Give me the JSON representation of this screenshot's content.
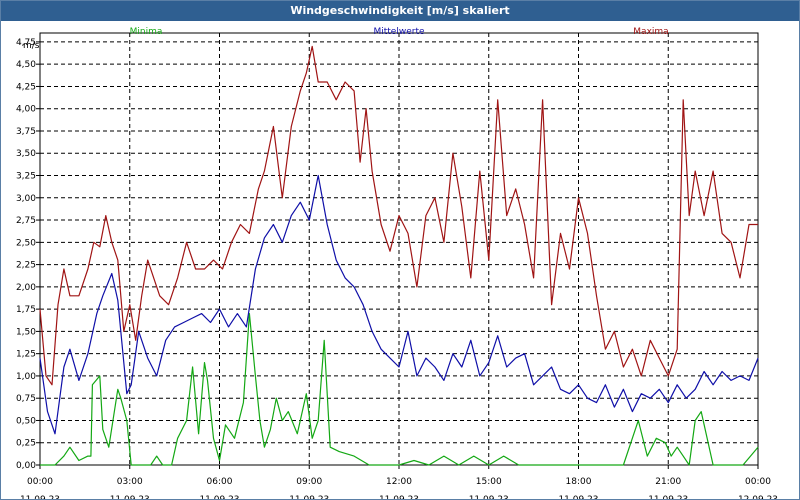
{
  "window": {
    "title": "Windgeschwindigkeit [m/s] skaliert"
  },
  "colors": {
    "min": "#14a814",
    "mean": "#0f0fa8",
    "max": "#a01414",
    "grid": "#000000",
    "frame": "#2f5f91"
  },
  "chart_data": {
    "type": "line",
    "title": "Windgeschwindigkeit [m/s] skaliert",
    "ylabel": "m/s",
    "xlabel": "",
    "ylim": [
      0,
      4.85
    ],
    "xlim": [
      0,
      24
    ],
    "grid": true,
    "legend_placement": "top",
    "y_ticks": [
      "0,00",
      "0,25",
      "0,50",
      "0,75",
      "1,00",
      "1,25",
      "1,50",
      "1,75",
      "2,00",
      "2,25",
      "2,50",
      "2,75",
      "3,00",
      "3,25",
      "3,50",
      "3,75",
      "4,00",
      "4,25",
      "4,50",
      "4,75"
    ],
    "x_ticks": [
      {
        "time": "00:00",
        "date": "11.09.23"
      },
      {
        "time": "03:00",
        "date": "11.09.23"
      },
      {
        "time": "06:00",
        "date": "11.09.23"
      },
      {
        "time": "09:00",
        "date": "11.09.23"
      },
      {
        "time": "12:00",
        "date": "11.09.23"
      },
      {
        "time": "15:00",
        "date": "11.09.23"
      },
      {
        "time": "18:00",
        "date": "11.09.23"
      },
      {
        "time": "21:00",
        "date": "11.09.23"
      },
      {
        "time": "00:00",
        "date": "12.09.23"
      }
    ],
    "series": [
      {
        "name": "Minima",
        "x": [
          0,
          0.5,
          0.8,
          1.0,
          1.3,
          1.6,
          1.7,
          1.75,
          2.0,
          2.1,
          2.3,
          2.6,
          2.7,
          2.9,
          3.05,
          3.2,
          3.5,
          3.7,
          3.9,
          4.1,
          4.4,
          4.6,
          4.9,
          5.1,
          5.3,
          5.5,
          5.6,
          5.8,
          6.0,
          6.2,
          6.5,
          6.8,
          7.0,
          7.2,
          7.35,
          7.5,
          7.7,
          7.9,
          8.1,
          8.3,
          8.6,
          8.9,
          9.1,
          9.3,
          9.5,
          9.7,
          10,
          10.5,
          11,
          11.5,
          12,
          12.5,
          13,
          13.5,
          14,
          14.5,
          15,
          15.5,
          16,
          16.5,
          17,
          17.5,
          18,
          18.5,
          19,
          19.5,
          20,
          20.3,
          20.6,
          20.9,
          21.1,
          21.3,
          21.5,
          21.7,
          21.9,
          22.1,
          22.5,
          23,
          23.5,
          24
        ],
        "values": [
          0,
          0,
          0.1,
          0.2,
          0.05,
          0.1,
          0.1,
          0.9,
          1.0,
          0.4,
          0.2,
          0.85,
          0.75,
          0.5,
          0,
          0,
          0,
          0,
          0.1,
          0,
          0,
          0.3,
          0.5,
          1.1,
          0.35,
          1.15,
          0.95,
          0.3,
          0.05,
          0.45,
          0.3,
          0.7,
          1.7,
          1.0,
          0.5,
          0.2,
          0.4,
          0.75,
          0.5,
          0.6,
          0.35,
          0.8,
          0.3,
          0.5,
          1.4,
          0.2,
          0.15,
          0.1,
          0,
          0,
          0,
          0.05,
          0,
          0.1,
          0,
          0.1,
          0,
          0.1,
          0,
          0,
          0,
          0,
          0,
          0,
          0,
          0,
          0.5,
          0.1,
          0.3,
          0.25,
          0.1,
          0.2,
          0.1,
          0,
          0.5,
          0.6,
          0,
          0,
          0,
          0.2
        ]
      },
      {
        "name": "Mittelwerte",
        "x": [
          0,
          0.25,
          0.5,
          0.8,
          1.0,
          1.3,
          1.6,
          1.9,
          2.1,
          2.4,
          2.6,
          2.9,
          3.05,
          3.3,
          3.6,
          3.9,
          4.2,
          4.5,
          4.8,
          5.1,
          5.4,
          5.7,
          6.0,
          6.3,
          6.6,
          6.9,
          7.2,
          7.5,
          7.8,
          8.1,
          8.4,
          8.7,
          9.0,
          9.3,
          9.6,
          9.9,
          10.2,
          10.5,
          10.8,
          11.1,
          11.4,
          11.7,
          12.0,
          12.3,
          12.6,
          12.9,
          13.2,
          13.5,
          13.8,
          14.1,
          14.4,
          14.7,
          15.0,
          15.3,
          15.6,
          15.9,
          16.2,
          16.5,
          16.8,
          17.1,
          17.4,
          17.7,
          18.0,
          18.3,
          18.6,
          18.9,
          19.2,
          19.5,
          19.8,
          20.1,
          20.4,
          20.7,
          21.0,
          21.3,
          21.6,
          21.9,
          22.2,
          22.5,
          22.8,
          23.1,
          23.4,
          23.7,
          24
        ],
        "values": [
          1.2,
          0.6,
          0.35,
          1.1,
          1.3,
          0.95,
          1.25,
          1.7,
          1.9,
          2.15,
          1.85,
          0.8,
          0.9,
          1.5,
          1.2,
          1.0,
          1.4,
          1.55,
          1.6,
          1.65,
          1.7,
          1.6,
          1.75,
          1.55,
          1.7,
          1.55,
          2.2,
          2.55,
          2.7,
          2.5,
          2.8,
          2.95,
          2.75,
          3.25,
          2.7,
          2.3,
          2.1,
          2.0,
          1.8,
          1.5,
          1.3,
          1.2,
          1.1,
          1.5,
          1.0,
          1.2,
          1.1,
          0.95,
          1.25,
          1.1,
          1.4,
          1.0,
          1.15,
          1.45,
          1.1,
          1.2,
          1.25,
          0.9,
          1.0,
          1.1,
          0.85,
          0.8,
          0.9,
          0.75,
          0.7,
          0.9,
          0.65,
          0.85,
          0.6,
          0.8,
          0.75,
          0.85,
          0.7,
          0.9,
          0.75,
          0.85,
          1.05,
          0.9,
          1.05,
          0.95,
          1.0,
          0.95,
          1.2
        ]
      },
      {
        "name": "Maxima",
        "x": [
          0,
          0.2,
          0.4,
          0.6,
          0.8,
          1.0,
          1.3,
          1.6,
          1.8,
          2.0,
          2.2,
          2.4,
          2.6,
          2.8,
          3.0,
          3.2,
          3.4,
          3.6,
          3.8,
          4.0,
          4.3,
          4.6,
          4.9,
          5.2,
          5.5,
          5.8,
          6.1,
          6.4,
          6.7,
          7.0,
          7.3,
          7.5,
          7.8,
          8.1,
          8.4,
          8.7,
          8.9,
          9.1,
          9.3,
          9.6,
          9.9,
          10.2,
          10.5,
          10.7,
          10.9,
          11.1,
          11.4,
          11.7,
          12.0,
          12.3,
          12.6,
          12.9,
          13.2,
          13.5,
          13.8,
          14.1,
          14.4,
          14.7,
          15.0,
          15.3,
          15.6,
          15.9,
          16.2,
          16.5,
          16.8,
          17.1,
          17.4,
          17.7,
          18.0,
          18.3,
          18.6,
          18.9,
          19.2,
          19.5,
          19.8,
          20.1,
          20.4,
          20.7,
          21.0,
          21.3,
          21.5,
          21.7,
          21.9,
          22.2,
          22.5,
          22.8,
          23.1,
          23.4,
          23.7,
          24
        ],
        "values": [
          1.75,
          1.0,
          0.9,
          1.8,
          2.2,
          1.9,
          1.9,
          2.2,
          2.5,
          2.45,
          2.8,
          2.5,
          2.3,
          1.5,
          1.8,
          1.4,
          1.9,
          2.3,
          2.1,
          1.9,
          1.8,
          2.1,
          2.5,
          2.2,
          2.2,
          2.3,
          2.2,
          2.5,
          2.7,
          2.6,
          3.1,
          3.3,
          3.8,
          3.0,
          3.8,
          4.2,
          4.4,
          4.7,
          4.3,
          4.3,
          4.1,
          4.3,
          4.2,
          3.4,
          4.0,
          3.3,
          2.7,
          2.4,
          2.8,
          2.6,
          2.0,
          2.8,
          3.0,
          2.5,
          3.5,
          2.9,
          2.1,
          3.3,
          2.3,
          4.1,
          2.8,
          3.1,
          2.7,
          2.1,
          4.1,
          1.8,
          2.6,
          2.2,
          3.0,
          2.6,
          1.9,
          1.3,
          1.5,
          1.1,
          1.3,
          1.0,
          1.4,
          1.2,
          1.0,
          1.3,
          4.1,
          2.8,
          3.3,
          2.8,
          3.3,
          2.6,
          2.5,
          2.1,
          2.7,
          2.7
        ]
      }
    ]
  }
}
